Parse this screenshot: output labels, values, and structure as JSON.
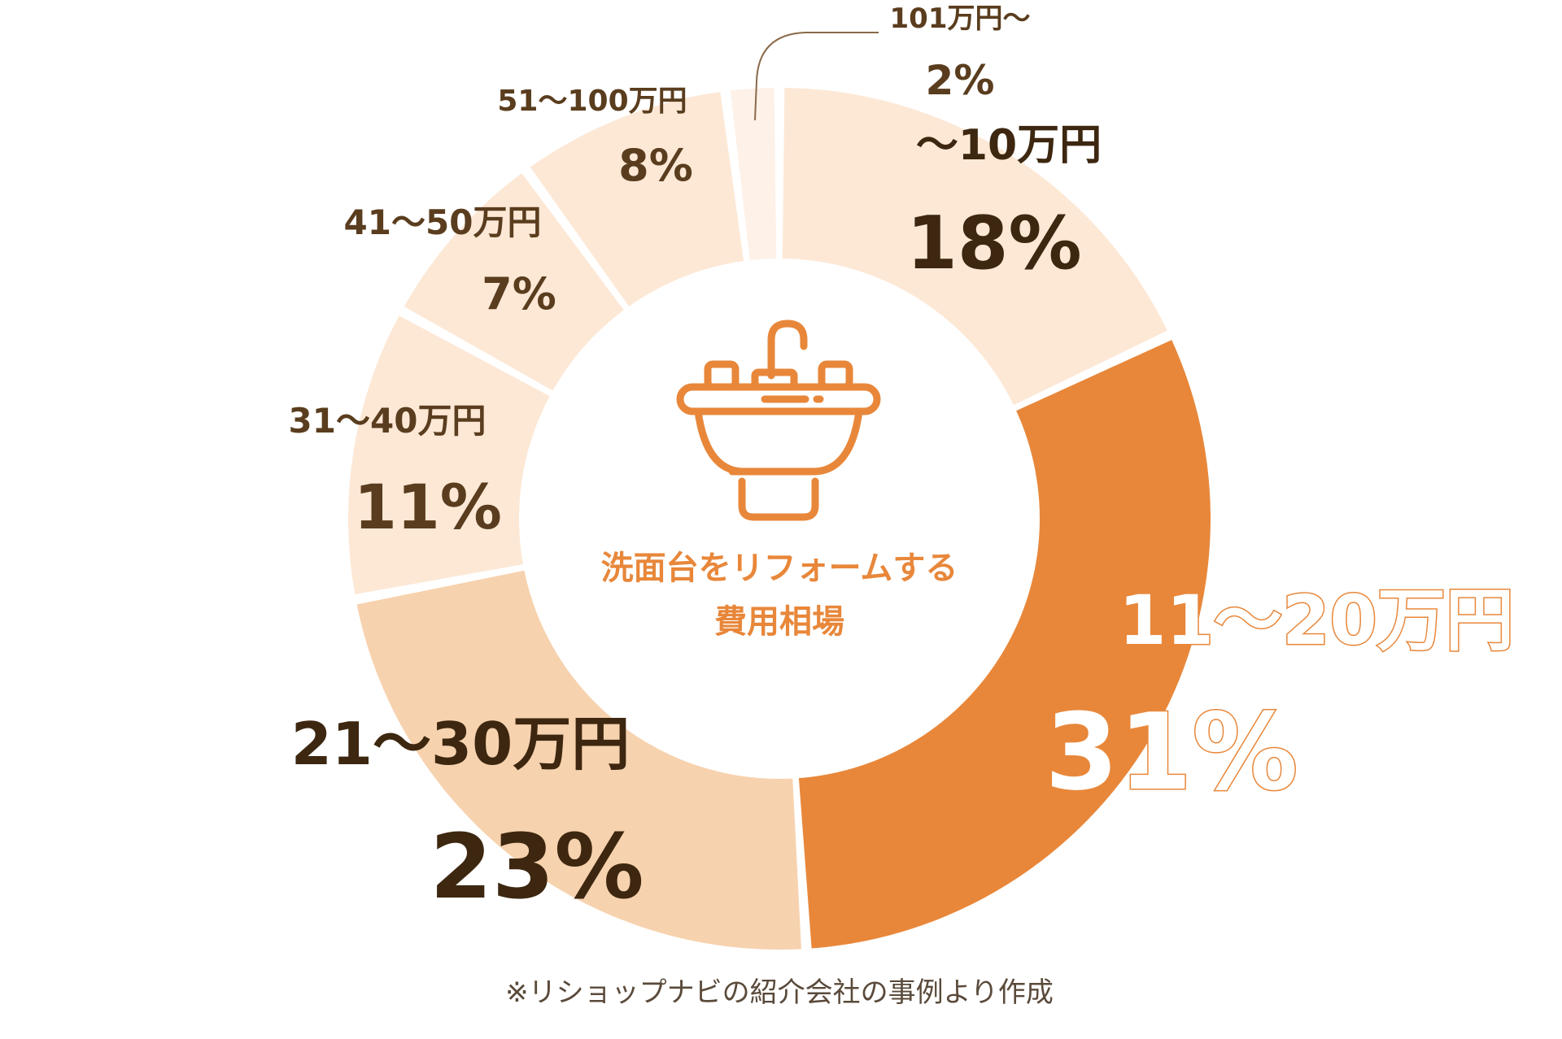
{
  "chart_data": {
    "type": "pie",
    "variant": "donut",
    "center_title": [
      "洗面台をリフォームする",
      "費用相場"
    ],
    "center_icon": "sink-icon",
    "note": "※リショップナビの紹介会社の事例より作成",
    "colors": {
      "highlight": "#e8873a",
      "medium": "#f7d2ae",
      "light": "#fde8d6",
      "lightest": "#fdf1e8",
      "icon": "#e8873a"
    },
    "slices": [
      {
        "label": "〜10万円",
        "value": 18,
        "value_label": "18%",
        "color": "#fde8d6"
      },
      {
        "label": "11〜20万円",
        "value": 31,
        "value_label": "31%",
        "color": "#e8873a"
      },
      {
        "label": "21〜30万円",
        "value": 23,
        "value_label": "23%",
        "color": "#f7d2ae"
      },
      {
        "label": "31〜40万円",
        "value": 11,
        "value_label": "11%",
        "color": "#fde8d6"
      },
      {
        "label": "41〜50万円",
        "value": 7,
        "value_label": "7%",
        "color": "#fde8d6"
      },
      {
        "label": "51〜100万円",
        "value": 8,
        "value_label": "8%",
        "color": "#fde8d6"
      },
      {
        "label": "101万円〜",
        "value": 2,
        "value_label": "2%",
        "color": "#fdf1e8"
      }
    ]
  }
}
